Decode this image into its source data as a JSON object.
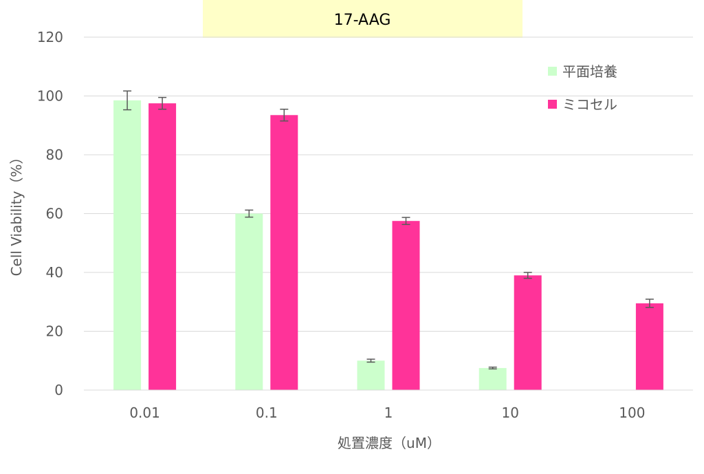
{
  "chart_data": {
    "type": "bar",
    "title": "17-AAG",
    "title_background": "#FFFFC8",
    "xlabel": "処置濃度（uM）",
    "ylabel": "Cell Viability（%）",
    "categories": [
      "0.01",
      "0.1",
      "1",
      "10",
      "100"
    ],
    "ylim": [
      0,
      120
    ],
    "yticks": [
      0,
      20,
      40,
      60,
      80,
      100,
      120
    ],
    "grid": true,
    "legend_position": "top-right",
    "series": [
      {
        "name": "平面培養",
        "color": "#CCFFCC",
        "values": [
          98.5,
          60,
          10,
          7.5,
          null
        ],
        "errors": [
          3.2,
          1.2,
          0.5,
          0.3,
          null
        ]
      },
      {
        "name": "ミコセル",
        "color": "#FF3399",
        "values": [
          97.5,
          93.5,
          57.5,
          39,
          29.5
        ],
        "errors": [
          2.0,
          2.0,
          1.2,
          1.0,
          1.4
        ]
      }
    ]
  }
}
